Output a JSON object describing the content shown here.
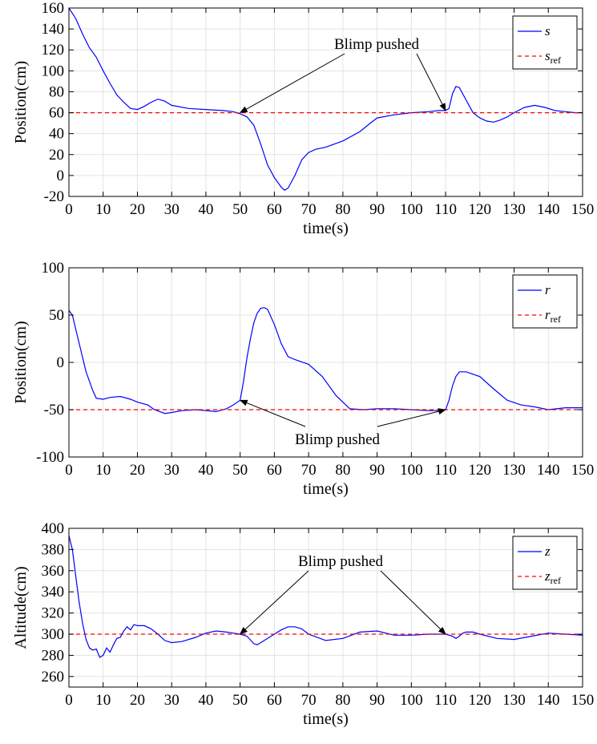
{
  "chart_data": [
    {
      "type": "line",
      "xlabel": "time(s)",
      "ylabel": "Position(cm)",
      "xlim": [
        0,
        150
      ],
      "ylim": [
        -20,
        160
      ],
      "xticks": [
        0,
        10,
        20,
        30,
        40,
        50,
        60,
        70,
        80,
        90,
        100,
        110,
        120,
        130,
        140,
        150
      ],
      "yticks": [
        -20,
        0,
        20,
        40,
        60,
        80,
        100,
        120,
        140,
        160
      ],
      "grid": true,
      "legend_position": "top-right",
      "annotation": {
        "text": "Blimp pushed",
        "targets": [
          [
            50,
            60
          ],
          [
            110,
            62
          ]
        ]
      },
      "series": [
        {
          "name": "s",
          "name_sub": "",
          "color": "#0000ff",
          "style": "solid",
          "x": [
            0,
            2,
            4,
            6,
            8,
            10,
            12,
            14,
            16,
            18,
            20,
            22,
            24,
            26,
            28,
            30,
            35,
            40,
            45,
            48,
            50,
            52,
            54,
            56,
            58,
            60,
            62,
            63,
            64,
            66,
            68,
            70,
            72,
            75,
            80,
            85,
            88,
            90,
            95,
            100,
            105,
            108,
            110,
            111,
            112,
            113,
            114,
            116,
            118,
            120,
            122,
            124,
            126,
            128,
            130,
            133,
            136,
            139,
            142,
            145,
            148,
            150
          ],
          "y": [
            160,
            150,
            135,
            122,
            113,
            100,
            88,
            77,
            70,
            64,
            63,
            66,
            70,
            73,
            71,
            67,
            64,
            63,
            62,
            61,
            59,
            56,
            48,
            30,
            10,
            -2,
            -11,
            -14,
            -12,
            0,
            15,
            22,
            25,
            27,
            33,
            42,
            50,
            55,
            58,
            60,
            61,
            62,
            62,
            64,
            78,
            85,
            84,
            72,
            60,
            55,
            52,
            51,
            53,
            56,
            60,
            65,
            67,
            65,
            62,
            61,
            60,
            60
          ]
        },
        {
          "name": "s",
          "name_sub": "ref",
          "color": "#ff0000",
          "style": "dashed",
          "x": [
            0,
            150
          ],
          "y": [
            60,
            60
          ]
        }
      ]
    },
    {
      "type": "line",
      "xlabel": "time(s)",
      "ylabel": "Position(cm)",
      "xlim": [
        0,
        150
      ],
      "ylim": [
        -100,
        100
      ],
      "xticks": [
        0,
        10,
        20,
        30,
        40,
        50,
        60,
        70,
        80,
        90,
        100,
        110,
        120,
        130,
        140,
        150
      ],
      "yticks": [
        -100,
        -50,
        0,
        50,
        100
      ],
      "grid": true,
      "legend_position": "top-right",
      "annotation": {
        "text": "Blimp pushed",
        "targets": [
          [
            50,
            -40
          ],
          [
            110,
            -50
          ]
        ]
      },
      "series": [
        {
          "name": "r",
          "name_sub": "",
          "color": "#0000ff",
          "style": "solid",
          "x": [
            0,
            1,
            3,
            5,
            7,
            8,
            10,
            12,
            15,
            18,
            20,
            23,
            25,
            28,
            30,
            33,
            37,
            40,
            43,
            46,
            48,
            50,
            51,
            52,
            53,
            54,
            55,
            56,
            57,
            58,
            60,
            62,
            64,
            66,
            70,
            74,
            78,
            82,
            86,
            90,
            95,
            100,
            105,
            108,
            110,
            111,
            112,
            113,
            114,
            116,
            120,
            124,
            128,
            132,
            136,
            140,
            145,
            150
          ],
          "y": [
            55,
            50,
            20,
            -10,
            -30,
            -38,
            -39,
            -37,
            -36,
            -39,
            -42,
            -45,
            -50,
            -54,
            -53,
            -51,
            -50,
            -51,
            -52,
            -49,
            -45,
            -40,
            -20,
            5,
            25,
            42,
            52,
            57,
            58,
            56,
            40,
            20,
            6,
            3,
            -2,
            -15,
            -35,
            -49,
            -50,
            -49,
            -49,
            -50,
            -51,
            -51,
            -50,
            -40,
            -25,
            -15,
            -10,
            -10,
            -15,
            -28,
            -40,
            -45,
            -47,
            -50,
            -48,
            -48
          ]
        },
        {
          "name": "r",
          "name_sub": "ref",
          "color": "#ff0000",
          "style": "dashed",
          "x": [
            0,
            150
          ],
          "y": [
            -50,
            -50
          ]
        }
      ]
    },
    {
      "type": "line",
      "xlabel": "time(s)",
      "ylabel": "Altitude(cm)",
      "xlim": [
        0,
        150
      ],
      "ylim": [
        250,
        400
      ],
      "xticks": [
        0,
        10,
        20,
        30,
        40,
        50,
        60,
        70,
        80,
        90,
        100,
        110,
        120,
        130,
        140,
        150
      ],
      "yticks": [
        260,
        280,
        300,
        320,
        340,
        360,
        380,
        400
      ],
      "grid": true,
      "legend_position": "top-right",
      "annotation": {
        "text": "Blimp pushed",
        "targets": [
          [
            50,
            300
          ],
          [
            110,
            300
          ]
        ]
      },
      "series": [
        {
          "name": "z",
          "name_sub": "",
          "color": "#0000ff",
          "style": "solid",
          "x": [
            0,
            1,
            2,
            3,
            4,
            5,
            6,
            7,
            8,
            9,
            10,
            11,
            12,
            13,
            14,
            15,
            16,
            17,
            18,
            19,
            20,
            22,
            24,
            26,
            28,
            30,
            33,
            37,
            40,
            43,
            46,
            48,
            50,
            52,
            54,
            55,
            56,
            58,
            60,
            62,
            64,
            66,
            68,
            70,
            75,
            80,
            85,
            90,
            95,
            100,
            105,
            110,
            112,
            113,
            114,
            115,
            116,
            118,
            120,
            125,
            130,
            135,
            140,
            145,
            150
          ],
          "y": [
            393,
            380,
            355,
            330,
            310,
            295,
            287,
            285,
            286,
            278,
            280,
            287,
            283,
            290,
            296,
            297,
            303,
            307,
            304,
            309,
            308,
            308,
            305,
            300,
            294,
            292,
            293,
            297,
            301,
            303,
            302,
            301,
            300,
            298,
            291,
            290,
            292,
            296,
            300,
            304,
            307,
            307,
            305,
            300,
            294,
            296,
            302,
            303,
            299,
            299,
            300,
            300,
            298,
            296,
            298,
            301,
            302,
            302,
            300,
            296,
            295,
            298,
            301,
            300,
            299
          ]
        },
        {
          "name": "z",
          "name_sub": "ref",
          "color": "#ff0000",
          "style": "dashed",
          "x": [
            0,
            150
          ],
          "y": [
            300,
            300
          ]
        }
      ]
    }
  ]
}
